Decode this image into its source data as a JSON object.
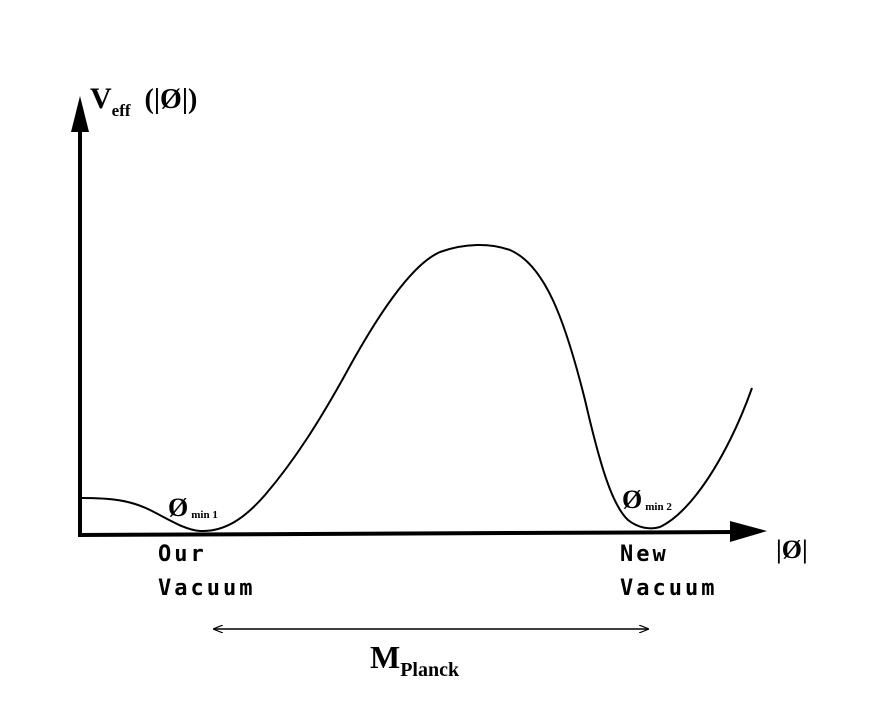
{
  "y_axis": {
    "label_main": "V",
    "label_sub": "eff",
    "label_arg": "(|Ø|)"
  },
  "x_axis": {
    "label": "|Ø|"
  },
  "minima": [
    {
      "symbol": "Ø",
      "sub": "min 1",
      "vacuum_line1": "Our",
      "vacuum_line2": "Vacuum"
    },
    {
      "symbol": "Ø",
      "sub": "min 2",
      "vacuum_line1": "New",
      "vacuum_line2": "Vacuum"
    }
  ],
  "scale": {
    "label_main": "M",
    "label_sub": "Planck"
  },
  "colors": {
    "ink": "#000000",
    "background": "#ffffff"
  }
}
